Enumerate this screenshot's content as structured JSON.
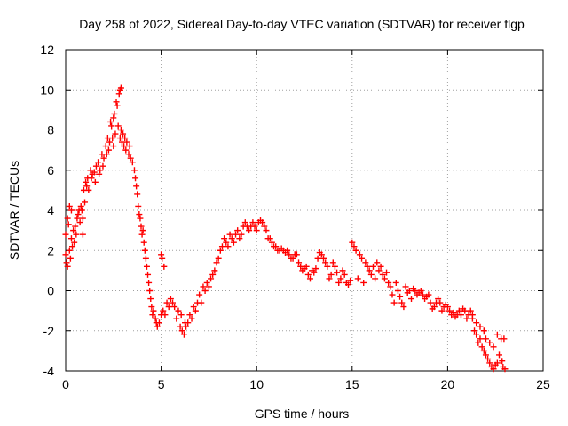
{
  "chart_data": {
    "type": "scatter",
    "title": "Day 258 of 2022, Sidereal Day-to-day VTEC variation (SDTVAR) for receiver flgp",
    "xlabel": "GPS time / hours",
    "ylabel": "SDTVAR / TECUs",
    "xlim": [
      0,
      25
    ],
    "ylim": [
      -4,
      12
    ],
    "xticks": [
      0,
      5,
      10,
      15,
      20,
      25
    ],
    "yticks": [
      -4,
      -2,
      0,
      2,
      4,
      6,
      8,
      10,
      12
    ],
    "xtick_labels": [
      "0",
      "5",
      "10",
      "15",
      "20",
      "25"
    ],
    "ytick_labels": [
      "-4",
      "-2",
      "0",
      "2",
      "4",
      "6",
      "8",
      "10",
      "12"
    ],
    "grid": true,
    "marker": "+",
    "series": [
      {
        "name": "SDTVAR",
        "color": "#ff0000",
        "points": [
          [
            0.0,
            2.8
          ],
          [
            0.0,
            1.8
          ],
          [
            0.05,
            1.4
          ],
          [
            0.1,
            1.2
          ],
          [
            0.1,
            3.6
          ],
          [
            0.15,
            3.3
          ],
          [
            0.2,
            4.2
          ],
          [
            0.2,
            2.0
          ],
          [
            0.25,
            1.6
          ],
          [
            0.3,
            4.0
          ],
          [
            0.3,
            2.6
          ],
          [
            0.35,
            2.2
          ],
          [
            0.4,
            3.0
          ],
          [
            0.45,
            2.4
          ],
          [
            0.5,
            3.2
          ],
          [
            0.55,
            2.8
          ],
          [
            0.6,
            3.6
          ],
          [
            0.65,
            3.8
          ],
          [
            0.7,
            4.0
          ],
          [
            0.75,
            3.4
          ],
          [
            0.8,
            4.2
          ],
          [
            0.85,
            4.0
          ],
          [
            0.9,
            3.6
          ],
          [
            0.9,
            2.8
          ],
          [
            0.95,
            5.0
          ],
          [
            1.0,
            4.4
          ],
          [
            1.05,
            5.4
          ],
          [
            1.1,
            5.2
          ],
          [
            1.15,
            5.6
          ],
          [
            1.2,
            5.0
          ],
          [
            1.3,
            6.0
          ],
          [
            1.35,
            5.6
          ],
          [
            1.4,
            5.8
          ],
          [
            1.5,
            5.9
          ],
          [
            1.55,
            5.4
          ],
          [
            1.6,
            6.2
          ],
          [
            1.7,
            6.4
          ],
          [
            1.75,
            5.8
          ],
          [
            1.8,
            6.0
          ],
          [
            1.9,
            6.8
          ],
          [
            1.95,
            6.2
          ],
          [
            2.0,
            6.6
          ],
          [
            2.1,
            7.2
          ],
          [
            2.15,
            6.8
          ],
          [
            2.2,
            7.6
          ],
          [
            2.25,
            7.0
          ],
          [
            2.3,
            7.4
          ],
          [
            2.35,
            8.4
          ],
          [
            2.4,
            8.2
          ],
          [
            2.45,
            7.6
          ],
          [
            2.5,
            8.6
          ],
          [
            2.5,
            7.2
          ],
          [
            2.55,
            8.8
          ],
          [
            2.6,
            7.8
          ],
          [
            2.65,
            9.4
          ],
          [
            2.7,
            9.2
          ],
          [
            2.75,
            8.2
          ],
          [
            2.8,
            9.8
          ],
          [
            2.85,
            7.6
          ],
          [
            2.85,
            10.0
          ],
          [
            2.9,
            10.1
          ],
          [
            2.9,
            8.0
          ],
          [
            2.95,
            7.4
          ],
          [
            3.0,
            7.8
          ],
          [
            3.05,
            7.2
          ],
          [
            3.1,
            7.6
          ],
          [
            3.15,
            7.0
          ],
          [
            3.2,
            7.4
          ],
          [
            3.3,
            6.8
          ],
          [
            3.35,
            7.2
          ],
          [
            3.4,
            6.6
          ],
          [
            3.5,
            6.4
          ],
          [
            3.6,
            6.0
          ],
          [
            3.65,
            5.6
          ],
          [
            3.7,
            5.2
          ],
          [
            3.75,
            4.8
          ],
          [
            3.8,
            4.2
          ],
          [
            3.85,
            3.8
          ],
          [
            3.9,
            3.6
          ],
          [
            3.95,
            3.2
          ],
          [
            4.0,
            2.8
          ],
          [
            4.05,
            3.0
          ],
          [
            4.1,
            2.4
          ],
          [
            4.15,
            2.0
          ],
          [
            4.2,
            1.6
          ],
          [
            4.25,
            1.2
          ],
          [
            4.3,
            0.8
          ],
          [
            4.35,
            0.4
          ],
          [
            4.4,
            0.0
          ],
          [
            4.45,
            -0.4
          ],
          [
            4.5,
            -0.8
          ],
          [
            4.55,
            -1.2
          ],
          [
            4.6,
            -1.0
          ],
          [
            4.7,
            -1.4
          ],
          [
            4.75,
            -1.6
          ],
          [
            4.8,
            -1.8
          ],
          [
            4.9,
            -1.6
          ],
          [
            5.0,
            -1.2
          ],
          [
            5.0,
            1.8
          ],
          [
            5.05,
            1.6
          ],
          [
            5.1,
            -1.0
          ],
          [
            5.15,
            1.2
          ],
          [
            5.2,
            -1.2
          ],
          [
            5.3,
            -0.6
          ],
          [
            5.4,
            -0.8
          ],
          [
            5.5,
            -0.4
          ],
          [
            5.6,
            -0.6
          ],
          [
            5.7,
            -0.8
          ],
          [
            5.8,
            -1.4
          ],
          [
            5.9,
            -1.0
          ],
          [
            6.0,
            -1.8
          ],
          [
            6.05,
            -1.2
          ],
          [
            6.1,
            -2.0
          ],
          [
            6.2,
            -2.2
          ],
          [
            6.25,
            -1.6
          ],
          [
            6.3,
            -1.8
          ],
          [
            6.4,
            -1.6
          ],
          [
            6.5,
            -1.2
          ],
          [
            6.6,
            -1.4
          ],
          [
            6.7,
            -0.8
          ],
          [
            6.8,
            -1.0
          ],
          [
            6.9,
            -0.6
          ],
          [
            7.0,
            -0.2
          ],
          [
            7.1,
            -0.6
          ],
          [
            7.2,
            0.2
          ],
          [
            7.3,
            0.0
          ],
          [
            7.4,
            0.4
          ],
          [
            7.5,
            0.2
          ],
          [
            7.6,
            0.6
          ],
          [
            7.7,
            0.8
          ],
          [
            7.8,
            1.0
          ],
          [
            7.9,
            1.4
          ],
          [
            8.0,
            1.6
          ],
          [
            8.1,
            2.0
          ],
          [
            8.2,
            2.2
          ],
          [
            8.3,
            2.6
          ],
          [
            8.4,
            2.4
          ],
          [
            8.5,
            2.2
          ],
          [
            8.6,
            2.8
          ],
          [
            8.7,
            2.6
          ],
          [
            8.8,
            2.4
          ],
          [
            8.9,
            2.8
          ],
          [
            9.0,
            3.0
          ],
          [
            9.1,
            2.6
          ],
          [
            9.2,
            2.8
          ],
          [
            9.3,
            3.2
          ],
          [
            9.4,
            3.4
          ],
          [
            9.5,
            3.2
          ],
          [
            9.6,
            3.0
          ],
          [
            9.7,
            3.2
          ],
          [
            9.8,
            3.4
          ],
          [
            9.9,
            3.2
          ],
          [
            10.0,
            3.0
          ],
          [
            10.1,
            3.4
          ],
          [
            10.2,
            3.5
          ],
          [
            10.3,
            3.4
          ],
          [
            10.4,
            3.2
          ],
          [
            10.5,
            3.0
          ],
          [
            10.6,
            2.6
          ],
          [
            10.7,
            2.6
          ],
          [
            10.8,
            2.4
          ],
          [
            10.9,
            2.2
          ],
          [
            11.0,
            2.2
          ],
          [
            11.1,
            2.0
          ],
          [
            11.2,
            2.0
          ],
          [
            11.3,
            2.1
          ],
          [
            11.4,
            2.0
          ],
          [
            11.5,
            1.9
          ],
          [
            11.6,
            2.0
          ],
          [
            11.7,
            1.8
          ],
          [
            11.8,
            1.6
          ],
          [
            11.9,
            1.6
          ],
          [
            12.0,
            1.8
          ],
          [
            12.1,
            1.8
          ],
          [
            12.2,
            1.4
          ],
          [
            12.3,
            1.2
          ],
          [
            12.4,
            1.0
          ],
          [
            12.5,
            1.1
          ],
          [
            12.6,
            1.2
          ],
          [
            12.7,
            0.8
          ],
          [
            12.8,
            0.6
          ],
          [
            12.9,
            1.0
          ],
          [
            13.0,
            0.9
          ],
          [
            13.1,
            1.1
          ],
          [
            13.2,
            1.6
          ],
          [
            13.3,
            1.9
          ],
          [
            13.4,
            1.8
          ],
          [
            13.5,
            1.6
          ],
          [
            13.6,
            1.4
          ],
          [
            13.7,
            1.2
          ],
          [
            13.8,
            0.6
          ],
          [
            13.9,
            0.8
          ],
          [
            14.0,
            1.4
          ],
          [
            14.1,
            1.2
          ],
          [
            14.2,
            0.9
          ],
          [
            14.3,
            0.4
          ],
          [
            14.4,
            0.6
          ],
          [
            14.5,
            1.0
          ],
          [
            14.6,
            0.8
          ],
          [
            14.7,
            0.4
          ],
          [
            14.8,
            0.3
          ],
          [
            14.9,
            0.5
          ],
          [
            15.0,
            2.4
          ],
          [
            15.1,
            2.2
          ],
          [
            15.2,
            2.0
          ],
          [
            15.3,
            0.6
          ],
          [
            15.4,
            1.8
          ],
          [
            15.5,
            1.6
          ],
          [
            15.6,
            0.4
          ],
          [
            15.7,
            1.4
          ],
          [
            15.8,
            1.2
          ],
          [
            15.9,
            1.0
          ],
          [
            16.0,
            0.8
          ],
          [
            16.1,
            1.2
          ],
          [
            16.2,
            0.6
          ],
          [
            16.3,
            1.4
          ],
          [
            16.4,
            1.0
          ],
          [
            16.5,
            1.2
          ],
          [
            16.6,
            0.8
          ],
          [
            16.7,
            0.6
          ],
          [
            16.8,
            0.9
          ],
          [
            16.9,
            0.4
          ],
          [
            17.0,
            0.2
          ],
          [
            17.1,
            -0.2
          ],
          [
            17.2,
            -0.6
          ],
          [
            17.3,
            0.4
          ],
          [
            17.4,
            0.0
          ],
          [
            17.5,
            -0.3
          ],
          [
            17.6,
            -0.6
          ],
          [
            17.7,
            -0.8
          ],
          [
            17.8,
            0.2
          ],
          [
            17.9,
            -0.1
          ],
          [
            18.0,
            0.0
          ],
          [
            18.1,
            -0.4
          ],
          [
            18.2,
            0.1
          ],
          [
            18.3,
            0.0
          ],
          [
            18.4,
            -0.2
          ],
          [
            18.5,
            -0.1
          ],
          [
            18.6,
            0.0
          ],
          [
            18.7,
            -0.2
          ],
          [
            18.8,
            -0.4
          ],
          [
            18.9,
            -0.3
          ],
          [
            19.0,
            -0.2
          ],
          [
            19.1,
            -0.6
          ],
          [
            19.2,
            -0.9
          ],
          [
            19.3,
            -0.8
          ],
          [
            19.4,
            -0.6
          ],
          [
            19.5,
            -0.4
          ],
          [
            19.6,
            -0.6
          ],
          [
            19.7,
            -1.0
          ],
          [
            19.8,
            -0.8
          ],
          [
            19.9,
            -0.7
          ],
          [
            20.0,
            -0.8
          ],
          [
            20.1,
            -1.0
          ],
          [
            20.2,
            -1.2
          ],
          [
            20.3,
            -1.1
          ],
          [
            20.4,
            -1.3
          ],
          [
            20.5,
            -1.2
          ],
          [
            20.6,
            -1.0
          ],
          [
            20.7,
            -1.2
          ],
          [
            20.8,
            -0.9
          ],
          [
            20.9,
            -1.0
          ],
          [
            21.0,
            -1.4
          ],
          [
            21.1,
            -1.2
          ],
          [
            21.2,
            -1.0
          ],
          [
            21.3,
            -1.4
          ],
          [
            21.4,
            -2.0
          ],
          [
            21.5,
            -2.2
          ],
          [
            21.6,
            -2.6
          ],
          [
            21.7,
            -2.4
          ],
          [
            21.8,
            -2.8
          ],
          [
            21.9,
            -3.0
          ],
          [
            22.0,
            -3.2
          ],
          [
            22.1,
            -3.4
          ],
          [
            22.2,
            -3.6
          ],
          [
            22.3,
            -3.8
          ],
          [
            22.4,
            -3.9
          ],
          [
            22.5,
            -3.7
          ],
          [
            22.6,
            -2.2
          ],
          [
            22.7,
            -3.2
          ],
          [
            22.8,
            -2.4
          ],
          [
            22.9,
            -3.8
          ],
          [
            23.0,
            -3.9
          ],
          [
            22.95,
            -2.4
          ],
          [
            22.85,
            -3.5
          ],
          [
            22.6,
            -3.6
          ],
          [
            22.4,
            -2.8
          ],
          [
            22.2,
            -2.6
          ],
          [
            22.0,
            -2.4
          ],
          [
            21.9,
            -2.0
          ],
          [
            21.7,
            -1.8
          ],
          [
            21.5,
            -1.6
          ],
          [
            21.3,
            -1.2
          ]
        ]
      }
    ]
  }
}
